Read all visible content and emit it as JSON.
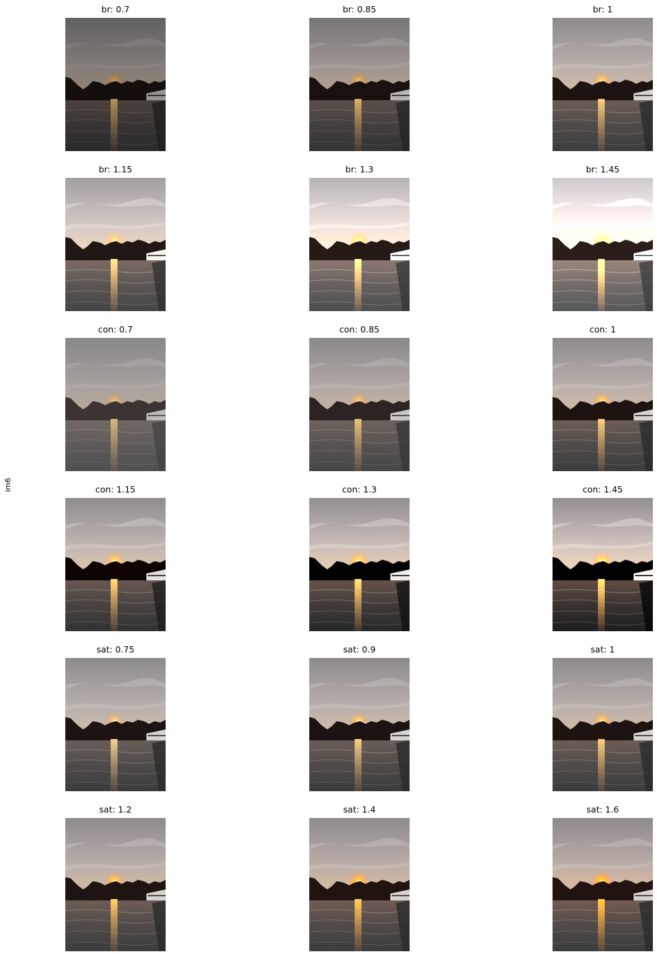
{
  "row_label": "im6",
  "grid": [
    {
      "label": "br: 0.7",
      "filter": "brightness(0.7)"
    },
    {
      "label": "br: 0.85",
      "filter": "brightness(0.85)"
    },
    {
      "label": "br: 1",
      "filter": "brightness(1)"
    },
    {
      "label": "br: 1.15",
      "filter": "brightness(1.15)"
    },
    {
      "label": "br: 1.3",
      "filter": "brightness(1.3)"
    },
    {
      "label": "br: 1.45",
      "filter": "brightness(1.45)"
    },
    {
      "label": "con: 0.7",
      "filter": "contrast(0.7)"
    },
    {
      "label": "con: 0.85",
      "filter": "contrast(0.85)"
    },
    {
      "label": "con: 1",
      "filter": "contrast(1)"
    },
    {
      "label": "con: 1.15",
      "filter": "contrast(1.15)"
    },
    {
      "label": "con: 1.3",
      "filter": "contrast(1.3)"
    },
    {
      "label": "con: 1.45",
      "filter": "contrast(1.45)"
    },
    {
      "label": "sat: 0.75",
      "filter": "saturate(0.75)"
    },
    {
      "label": "sat: 0.9",
      "filter": "saturate(0.9)"
    },
    {
      "label": "sat: 1",
      "filter": "saturate(1)"
    },
    {
      "label": "sat: 1.2",
      "filter": "saturate(1.2)"
    },
    {
      "label": "sat: 1.4",
      "filter": "saturate(1.4)"
    },
    {
      "label": "sat: 1.6",
      "filter": "saturate(1.6)"
    }
  ]
}
